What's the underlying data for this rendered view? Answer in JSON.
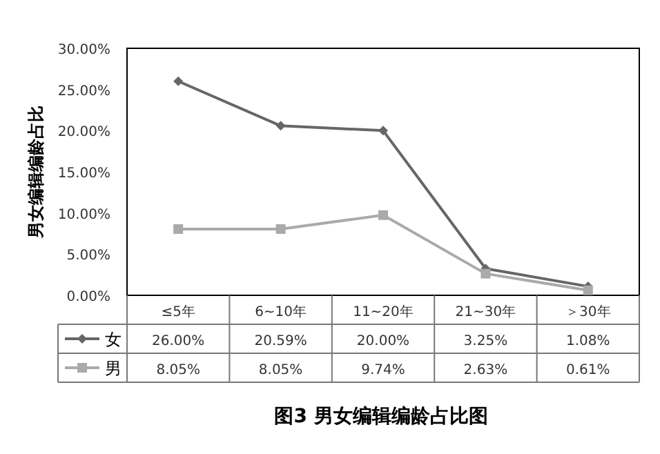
{
  "chart_data": {
    "type": "line",
    "title": "图3  男女编辑编龄占比图",
    "ylabel": "男女编辑编龄占比",
    "categories": [
      "≤5年",
      "6~10年",
      "11~20年",
      "21~30年",
      "＞30年"
    ],
    "series": [
      {
        "name": "女",
        "color": "#666666",
        "marker": "diamond",
        "values": [
          26.0,
          20.59,
          20.0,
          3.25,
          1.08
        ],
        "value_labels": [
          "26.00%",
          "20.59%",
          "20.00%",
          "3.25%",
          "1.08%"
        ]
      },
      {
        "name": "男",
        "color": "#aaaaaa",
        "marker": "square",
        "values": [
          8.05,
          8.05,
          9.74,
          2.63,
          0.61
        ],
        "value_labels": [
          "8.05%",
          "8.05%",
          "9.74%",
          "2.63%",
          "0.61%"
        ]
      }
    ],
    "ylim": [
      0,
      30
    ],
    "yticks": [
      {
        "value": 0,
        "label": "0.00%"
      },
      {
        "value": 5,
        "label": "5.00%"
      },
      {
        "value": 10,
        "label": "10.00%"
      },
      {
        "value": 15,
        "label": "15.00%"
      },
      {
        "value": 20,
        "label": "20.00%"
      },
      {
        "value": 25,
        "label": "25.00%"
      },
      {
        "value": 30,
        "label": "30.00%"
      }
    ],
    "grid": false,
    "legend": "bottom"
  }
}
